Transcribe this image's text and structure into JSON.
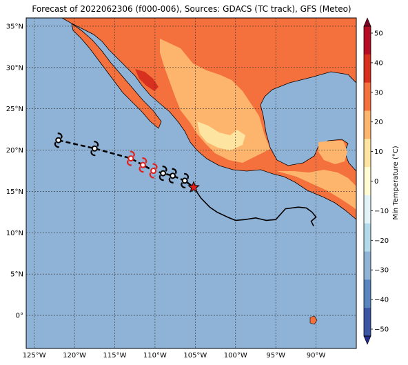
{
  "title": "Forecast of 2022062306 (f000-006), Sources: GDACS (TC track), GFS (Meteo)",
  "colors": {
    "ocean": "#8fb2d7",
    "land_warm": "#f4703d",
    "land_mild": "#fdb46c",
    "land_cool": "#fde4a0",
    "land_hot": "#d7301f",
    "track": "#000000",
    "storm_symbol_forecast": "#000000",
    "storm_symbol_current": "#e0201b"
  },
  "map": {
    "lat_labels": [
      "35°N",
      "30°N",
      "25°N",
      "20°N",
      "15°N",
      "10°N",
      "5°N",
      "0°"
    ],
    "lon_labels": [
      "125°W",
      "120°W",
      "115°W",
      "110°W",
      "105°W",
      "100°W",
      "95°W",
      "90°W"
    ],
    "lon_range": [
      -126,
      -85
    ],
    "lat_range": [
      -4,
      36
    ]
  },
  "colorbar": {
    "label": "Min Temperature (°C)",
    "tick_labels": [
      "50",
      "40",
      "30",
      "20",
      "10",
      "0",
      "−10",
      "−20",
      "−30",
      "−40",
      "−50"
    ],
    "colors": [
      "#7a0526",
      "#b50d26",
      "#d7301f",
      "#f4703d",
      "#fdb46c",
      "#fde4a0",
      "#fffbd2",
      "#e1f3f8",
      "#b3dae9",
      "#8fb2d7",
      "#5a86c0",
      "#3b56a5",
      "#232b8c"
    ]
  },
  "track": {
    "style": "dashed forecast, solid history",
    "forecast_points": [
      [
        -122,
        21.2
      ],
      [
        -117.5,
        20.2
      ],
      [
        -113,
        19.0
      ],
      [
        -111.5,
        18.2
      ],
      [
        -110.2,
        17.5
      ],
      [
        -109,
        17.2
      ],
      [
        -107.8,
        16.9
      ],
      [
        -106.3,
        16.3
      ],
      [
        -105.2,
        15.5
      ]
    ],
    "history_points": [
      [
        -105.2,
        15.5
      ],
      [
        -104.3,
        14.2
      ],
      [
        -103.2,
        13.1
      ],
      [
        -102.3,
        12.5
      ],
      [
        -101.0,
        11.9
      ],
      [
        -100.0,
        11.5
      ],
      [
        -98.8,
        11.6
      ],
      [
        -97.5,
        11.8
      ],
      [
        -96.2,
        11.5
      ],
      [
        -95.0,
        11.6
      ],
      [
        -93.8,
        12.9
      ],
      [
        -92.2,
        13.1
      ],
      [
        -91.2,
        13.0
      ],
      [
        -90.5,
        12.5
      ],
      [
        -90.0,
        11.9
      ],
      [
        -90.6,
        11.4
      ],
      [
        -90.3,
        10.8
      ]
    ],
    "storm_symbols": [
      {
        "lon": -122,
        "lat": 21.2,
        "intensity": "forecast"
      },
      {
        "lon": -117.5,
        "lat": 20.2,
        "intensity": "forecast"
      },
      {
        "lon": -113,
        "lat": 19.0,
        "intensity": "current"
      },
      {
        "lon": -111.5,
        "lat": 18.2,
        "intensity": "current"
      },
      {
        "lon": -110.2,
        "lat": 17.5,
        "intensity": "current"
      },
      {
        "lon": -109,
        "lat": 17.2,
        "intensity": "forecast"
      },
      {
        "lon": -107.8,
        "lat": 16.9,
        "intensity": "forecast"
      },
      {
        "lon": -106.3,
        "lat": 16.3,
        "intensity": "forecast"
      }
    ],
    "current_position": {
      "lon": -105.2,
      "lat": 15.5
    }
  }
}
